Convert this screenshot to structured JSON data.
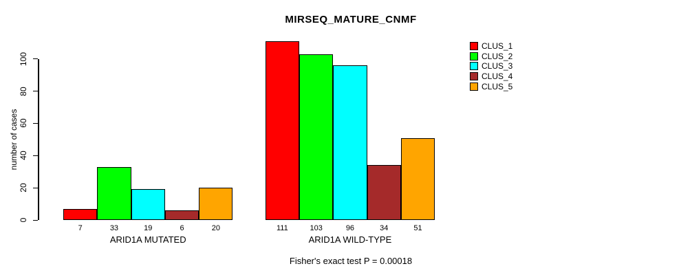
{
  "title": "MIRSEQ_MATURE_CNMF",
  "footer": "Fisher's exact test P = 0.00018",
  "chart_data": {
    "type": "bar",
    "title": "MIRSEQ_MATURE_CNMF",
    "xlabel": "",
    "ylabel": "number of cases",
    "ylim": [
      0,
      115
    ],
    "yticks": [
      0,
      20,
      40,
      60,
      80,
      100
    ],
    "grid": false,
    "legend_position": "top-right",
    "categories": [
      "ARID1A MUTATED",
      "ARID1A WILD-TYPE"
    ],
    "series": [
      {
        "name": "CLUS_1",
        "color": "#FF0000",
        "values": [
          7,
          111
        ]
      },
      {
        "name": "CLUS_2",
        "color": "#00FF00",
        "values": [
          33,
          103
        ]
      },
      {
        "name": "CLUS_3",
        "color": "#00FFFF",
        "values": [
          19,
          96
        ]
      },
      {
        "name": "CLUS_4",
        "color": "#A52A2A",
        "values": [
          6,
          34
        ]
      },
      {
        "name": "CLUS_5",
        "color": "#FFA500",
        "values": [
          20,
          51
        ]
      }
    ],
    "bar_value_labels": {
      "ARID1A MUTATED": [
        7,
        33,
        19,
        6,
        20
      ],
      "ARID1A WILD-TYPE": [
        111,
        103,
        96,
        34,
        51
      ]
    },
    "annotation": "Fisher's exact test P = 0.00018"
  }
}
